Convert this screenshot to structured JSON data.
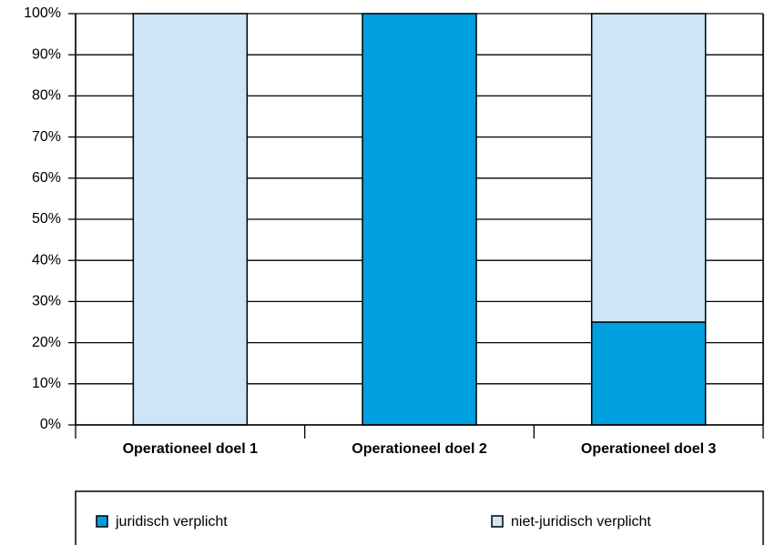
{
  "chart_data": {
    "type": "stacked_bar",
    "categories": [
      "Operationeel doel 1",
      "Operationeel doel 2",
      "Operationeel doel 3"
    ],
    "series": [
      {
        "name": "juridisch verplicht",
        "color": "#009fdf",
        "values": [
          0,
          100,
          25
        ]
      },
      {
        "name": "niet-juridisch verplicht",
        "color": "#cce6f7",
        "values": [
          100,
          0,
          75
        ]
      }
    ],
    "ylim": [
      0,
      100
    ],
    "yticks": [
      {
        "value": 0,
        "label": "0%"
      },
      {
        "value": 10,
        "label": "10%"
      },
      {
        "value": 20,
        "label": "20%"
      },
      {
        "value": 30,
        "label": "30%"
      },
      {
        "value": 40,
        "label": "40%"
      },
      {
        "value": 50,
        "label": "50%"
      },
      {
        "value": 60,
        "label": "60%"
      },
      {
        "value": 70,
        "label": "70%"
      },
      {
        "value": 80,
        "label": "80%"
      },
      {
        "value": 90,
        "label": "90%"
      },
      {
        "value": 100,
        "label": "100%"
      }
    ],
    "grid": true
  }
}
